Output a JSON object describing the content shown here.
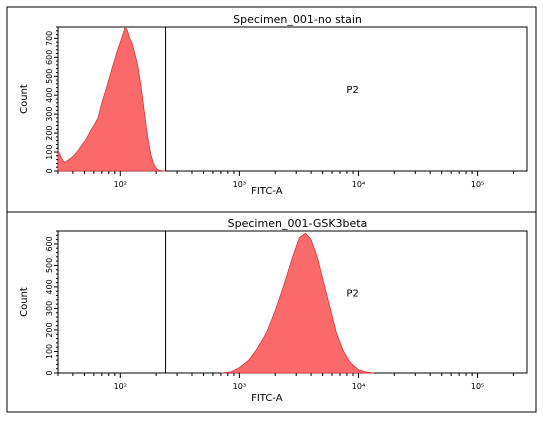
{
  "chart_data": [
    {
      "type": "area",
      "title": "Specimen_001-no stain",
      "xlabel": "FITC-A",
      "ylabel": "Count",
      "x_scale": "log",
      "xlim": [
        30,
        260000
      ],
      "ylim": [
        0,
        760
      ],
      "y_ticks": [
        0,
        100,
        200,
        300,
        400,
        500,
        600,
        700
      ],
      "x_ticks": [
        {
          "value": 100,
          "label": "10²"
        },
        {
          "value": 1000,
          "label": "10³"
        },
        {
          "value": 10000,
          "label": "10⁴"
        },
        {
          "value": 100000,
          "label": "10⁵"
        }
      ],
      "gate": {
        "label": "P2",
        "x_min": 240
      },
      "fill_color": "#fa6a6a",
      "x": [
        30,
        32,
        34,
        36,
        39,
        42,
        45,
        48,
        52,
        56,
        60,
        65,
        70,
        75,
        80,
        85,
        90,
        95,
        100,
        105,
        110,
        115,
        120,
        125,
        130,
        140,
        150,
        160,
        170,
        180,
        190,
        200,
        210,
        220,
        240
      ],
      "y": [
        110,
        70,
        45,
        55,
        70,
        90,
        115,
        140,
        170,
        210,
        240,
        280,
        360,
        420,
        480,
        540,
        590,
        640,
        680,
        720,
        760,
        740,
        700,
        680,
        640,
        560,
        440,
        300,
        180,
        90,
        40,
        15,
        5,
        2,
        0
      ]
    },
    {
      "type": "area",
      "title": "Specimen_001-GSK3beta",
      "xlabel": "FITC-A",
      "ylabel": "Count",
      "x_scale": "log",
      "xlim": [
        30,
        260000
      ],
      "ylim": [
        0,
        660
      ],
      "y_ticks": [
        0,
        100,
        200,
        300,
        400,
        500,
        600
      ],
      "x_ticks": [
        {
          "value": 100,
          "label": "10²"
        },
        {
          "value": 1000,
          "label": "10³"
        },
        {
          "value": 10000,
          "label": "10⁴"
        },
        {
          "value": 100000,
          "label": "10⁵"
        }
      ],
      "gate": {
        "label": "P2",
        "x_min": 240
      },
      "fill_color": "#fa6a6a",
      "x": [
        700,
        850,
        1000,
        1200,
        1400,
        1700,
        2000,
        2400,
        2800,
        3200,
        3600,
        4000,
        4500,
        5000,
        5800,
        6500,
        7500,
        8500,
        10000,
        11500,
        13500
      ],
      "y": [
        0,
        5,
        25,
        60,
        110,
        190,
        290,
        420,
        540,
        630,
        650,
        620,
        540,
        440,
        300,
        190,
        100,
        50,
        15,
        5,
        0
      ]
    }
  ]
}
